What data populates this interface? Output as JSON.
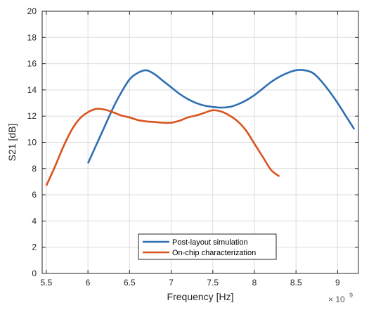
{
  "chart_data": {
    "type": "line",
    "title": "",
    "xlabel": "Frequency [Hz]",
    "ylabel": "S21 [dB]",
    "x_multiplier_label": "× 10",
    "x_multiplier_exponent": "9",
    "xlim": [
      5.45,
      9.25
    ],
    "ylim": [
      0,
      20
    ],
    "x_ticks": [
      5.5,
      6,
      6.5,
      7,
      7.5,
      8,
      8.5,
      9
    ],
    "x_tick_labels": [
      "5.5",
      "6",
      "6.5",
      "7",
      "7.5",
      "8",
      "8.5",
      "9"
    ],
    "y_ticks": [
      0,
      2,
      4,
      6,
      8,
      10,
      12,
      14,
      16,
      18,
      20
    ],
    "y_tick_labels": [
      "0",
      "2",
      "4",
      "6",
      "8",
      "10",
      "12",
      "14",
      "16",
      "18",
      "20"
    ],
    "grid": true,
    "legend_position": "bottom-center",
    "series": [
      {
        "name": "Post-layout simulation",
        "color": "#2F6FB3",
        "x": [
          6.0,
          6.1,
          6.2,
          6.3,
          6.4,
          6.5,
          6.6,
          6.7,
          6.8,
          6.9,
          7.0,
          7.1,
          7.2,
          7.3,
          7.4,
          7.5,
          7.6,
          7.7,
          7.8,
          7.9,
          8.0,
          8.1,
          8.2,
          8.3,
          8.4,
          8.5,
          8.6,
          8.7,
          8.8,
          8.9,
          9.0,
          9.1,
          9.2
        ],
        "y": [
          8.4,
          9.8,
          11.2,
          12.6,
          13.8,
          14.8,
          15.3,
          15.5,
          15.2,
          14.7,
          14.2,
          13.7,
          13.3,
          13.0,
          12.8,
          12.7,
          12.65,
          12.7,
          12.9,
          13.2,
          13.6,
          14.1,
          14.6,
          15.0,
          15.3,
          15.5,
          15.5,
          15.3,
          14.7,
          13.9,
          13.0,
          12.0,
          11.0
        ]
      },
      {
        "name": "On-chip characterization",
        "color": "#D9541E",
        "x": [
          5.5,
          5.6,
          5.7,
          5.8,
          5.9,
          6.0,
          6.1,
          6.2,
          6.3,
          6.4,
          6.5,
          6.6,
          6.7,
          6.8,
          6.9,
          7.0,
          7.1,
          7.2,
          7.3,
          7.4,
          7.5,
          7.6,
          7.7,
          7.8,
          7.9,
          8.0,
          8.1,
          8.2,
          8.3
        ],
        "y": [
          6.7,
          8.1,
          9.6,
          10.9,
          11.8,
          12.3,
          12.55,
          12.5,
          12.3,
          12.05,
          11.9,
          11.7,
          11.6,
          11.55,
          11.5,
          11.5,
          11.65,
          11.9,
          12.05,
          12.25,
          12.45,
          12.35,
          12.05,
          11.6,
          10.9,
          9.9,
          8.9,
          7.9,
          7.4
        ]
      }
    ]
  }
}
